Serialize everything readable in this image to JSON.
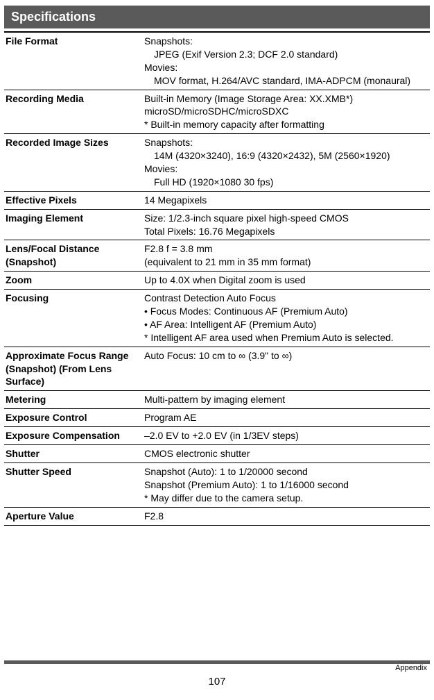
{
  "header": {
    "title": "Specifications"
  },
  "rows": [
    {
      "label": "File Format",
      "value": "Snapshots:<br><span class=\"indent\">JPEG (Exif Version 2.3; DCF 2.0 standard)</span>Movies:<br><span class=\"indent\">MOV format, H.264/AVC standard, IMA-ADPCM (monaural)</span>"
    },
    {
      "label": "Recording Media",
      "value": "Built-in Memory (Image Storage Area: XX.XMB*)<br>microSD/microSDHC/microSDXC<br>* Built-in memory capacity after formatting"
    },
    {
      "label": "Recorded Image Sizes",
      "value": "Snapshots:<br><span class=\"indent\">14M (4320×3240), 16:9 (4320×2432), 5M (2560×1920)</span>Movies:<br><span class=\"indent\">Full HD (1920×1080 30 fps)</span>"
    },
    {
      "label": "Effective Pixels",
      "value": "14 Megapixels"
    },
    {
      "label": "Imaging Element",
      "value": "Size: 1/2.3-inch square pixel high-speed CMOS<br>Total Pixels: 16.76 Megapixels"
    },
    {
      "label": "Lens/Focal Distance (Snapshot)",
      "value": "F2.8 f = 3.8 mm<br>(equivalent to 21 mm in 35 mm format)"
    },
    {
      "label": "Zoom",
      "value": "Up to 4.0X when Digital zoom is used"
    },
    {
      "label": "Focusing",
      "value": "Contrast Detection Auto Focus<br>• Focus Modes: Continuous AF (Premium Auto)<br>• AF Area: Intelligent AF (Premium Auto)<br>* Intelligent AF area used when Premium Auto is selected."
    },
    {
      "label": "Approximate Focus Range (Snapshot) (From Lens Surface)",
      "value": "Auto Focus: 10 cm to ∞ (3.9\" to ∞)"
    },
    {
      "label": "Metering",
      "value": "Multi-pattern by imaging element"
    },
    {
      "label": "Exposure Control",
      "value": "Program AE"
    },
    {
      "label": "Exposure Compensation",
      "value": "–2.0 EV to +2.0 EV (in 1/3EV steps)"
    },
    {
      "label": "Shutter",
      "value": "CMOS electronic shutter"
    },
    {
      "label": "Shutter Speed",
      "value": "Snapshot (Auto): 1 to 1/20000 second<br>Snapshot (Premium Auto): 1 to 1/16000 second<br>* May differ due to the camera setup."
    },
    {
      "label": "Aperture Value",
      "value": "F2.8"
    }
  ],
  "footer": {
    "page_number": "107",
    "section": "Appendix"
  },
  "style": {
    "header_bg": "#5a5a5a",
    "header_fg": "#ffffff",
    "text_color": "#000000",
    "border_color": "#000000",
    "font_size_body": 14,
    "font_size_header": 18,
    "label_col_width": 200
  }
}
